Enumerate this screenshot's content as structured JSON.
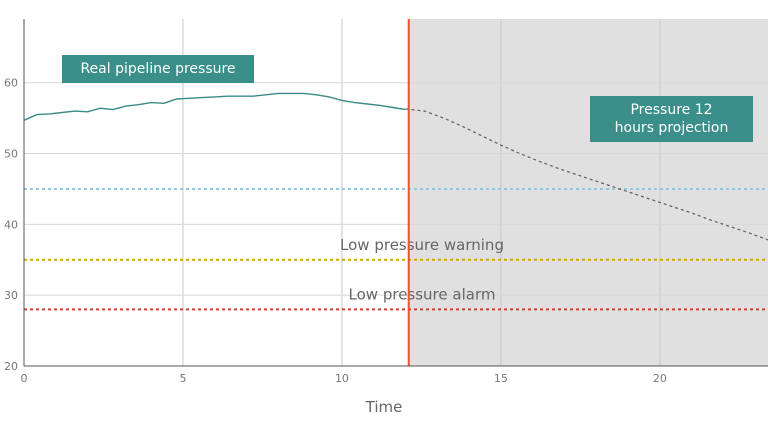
{
  "chart_data": {
    "type": "line",
    "title": "",
    "xlabel": "Time",
    "ylabel": "",
    "xlim": [
      0,
      23.4
    ],
    "ylim": [
      20,
      69
    ],
    "xticks": [
      0,
      5,
      10,
      15,
      20
    ],
    "yticks": [
      20,
      30,
      40,
      50,
      60
    ],
    "grid": true,
    "current_time": 12.1,
    "projection_region_color": "#e0e0e0",
    "current_time_line_color": "#f05030",
    "series": [
      {
        "name": "Real pipeline pressure",
        "style": "solid",
        "color": "#3a8a88",
        "x": [
          0,
          0.4,
          0.8,
          1.2,
          1.6,
          2.0,
          2.4,
          2.8,
          3.2,
          3.6,
          4.0,
          4.4,
          4.8,
          5.2,
          5.6,
          6.0,
          6.4,
          6.8,
          7.2,
          7.6,
          8.0,
          8.4,
          8.8,
          9.2,
          9.6,
          10.0,
          10.4,
          10.8,
          11.2,
          11.6,
          12.0
        ],
        "y": [
          54.7,
          55.5,
          55.6,
          55.8,
          56.0,
          55.9,
          56.4,
          56.2,
          56.7,
          56.9,
          57.2,
          57.1,
          57.7,
          57.8,
          57.9,
          58.0,
          58.1,
          58.1,
          58.1,
          58.3,
          58.5,
          58.5,
          58.5,
          58.3,
          58.0,
          57.5,
          57.2,
          57.0,
          56.8,
          56.5,
          56.2
        ]
      },
      {
        "name": "Pressure 12 hours projection",
        "style": "dashed",
        "color": "#666666",
        "x": [
          12.0,
          12.6,
          13.2,
          13.8,
          14.4,
          15.0,
          15.6,
          16.2,
          16.8,
          17.4,
          18.0,
          18.6,
          19.2,
          19.8,
          20.4,
          21.0,
          21.6,
          22.2,
          22.8,
          23.4
        ],
        "y": [
          56.3,
          56.0,
          55.0,
          53.8,
          52.5,
          51.2,
          50.0,
          48.9,
          47.9,
          47.0,
          46.1,
          45.2,
          44.3,
          43.4,
          42.5,
          41.6,
          40.6,
          39.7,
          38.8,
          37.8
        ]
      }
    ],
    "reference_lines": [
      {
        "value": 45,
        "label": "",
        "color": "#8ec9de"
      },
      {
        "value": 35,
        "label": "Low pressure warning",
        "color": "#d4a800"
      },
      {
        "value": 28,
        "label": "Low pressure alarm",
        "color": "#e03a30"
      }
    ],
    "annotations": [
      {
        "text": "Real pipeline pressure"
      },
      {
        "text_line1": "Pressure 12",
        "text_line2": "hours projection"
      }
    ]
  }
}
